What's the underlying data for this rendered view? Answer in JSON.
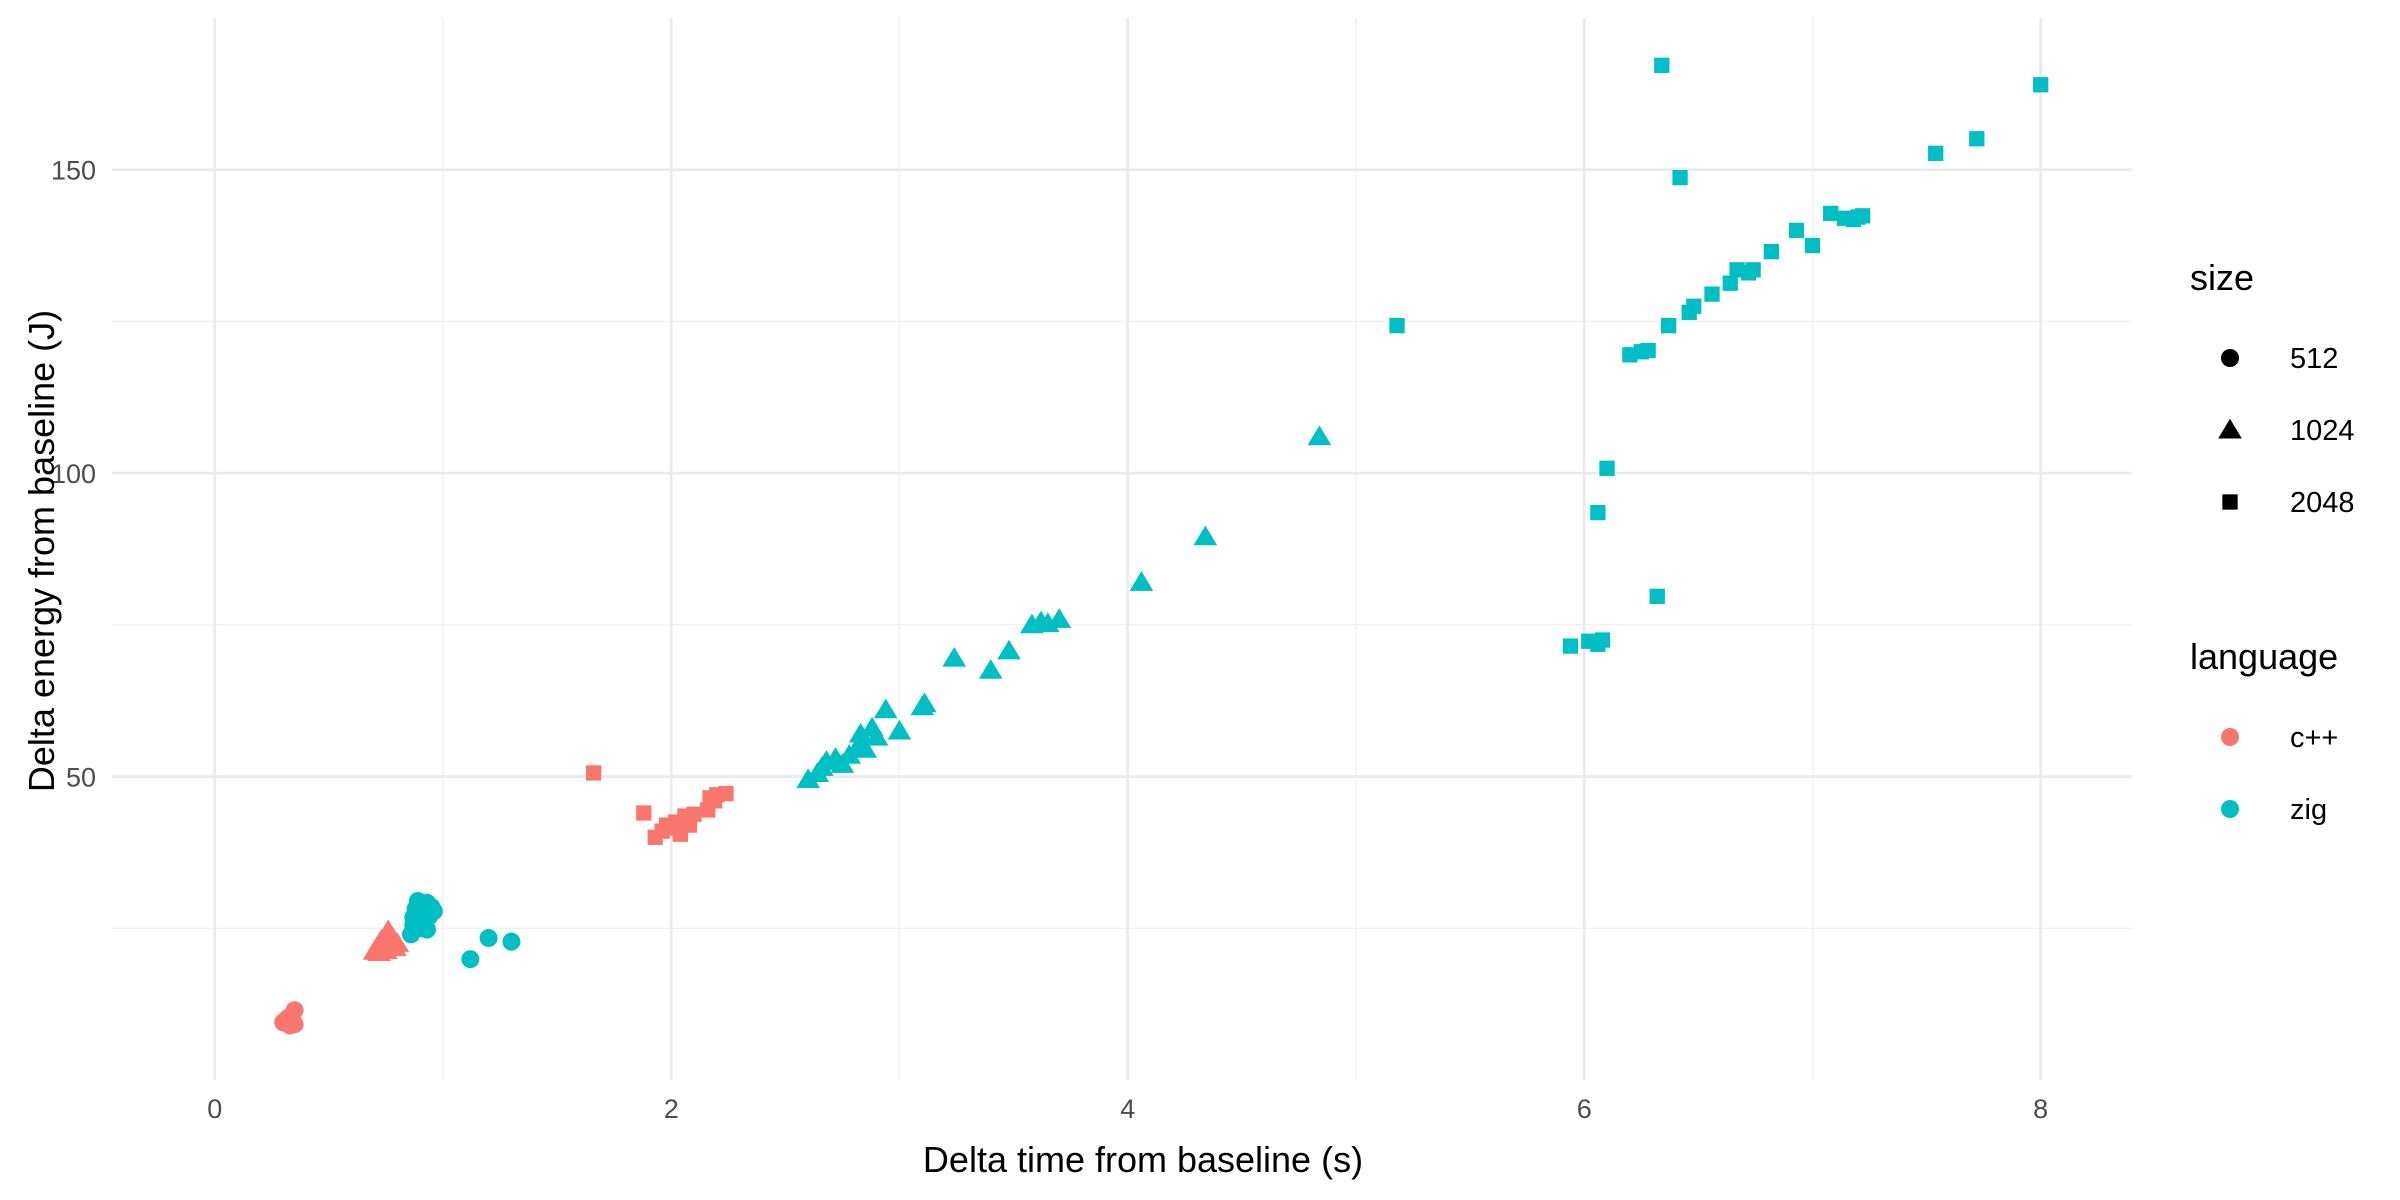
{
  "chart_data": {
    "type": "scatter",
    "title": "",
    "xlabel": "Delta time from baseline (s)",
    "ylabel": "Delta energy from baseline (J)",
    "xlim": [
      -0.45,
      8.4
    ],
    "ylim": [
      0,
      175
    ],
    "x_ticks": [
      0,
      2,
      4,
      6,
      8
    ],
    "x_tick_labels": [
      "0",
      "2",
      "4",
      "6",
      "8"
    ],
    "y_ticks": [
      50,
      100,
      150
    ],
    "y_tick_labels": [
      "50",
      "100",
      "150"
    ],
    "grid": true,
    "legend_position": "right",
    "legends": {
      "size": {
        "title": "size",
        "items": [
          {
            "label": "512",
            "shape": "circle"
          },
          {
            "label": "1024",
            "shape": "triangle"
          },
          {
            "label": "2048",
            "shape": "square"
          }
        ]
      },
      "language": {
        "title": "language",
        "items": [
          {
            "label": "c++",
            "color": "#F8766D"
          },
          {
            "label": "zig",
            "color": "#00BFC4"
          }
        ]
      }
    },
    "colors": {
      "c++": "#F8766D",
      "zig": "#00BFC4"
    },
    "series": [
      {
        "language": "c++",
        "size": "512",
        "points": [
          [
            0.3,
            9.5
          ],
          [
            0.31,
            9.8
          ],
          [
            0.32,
            10.2
          ],
          [
            0.32,
            9.3
          ],
          [
            0.33,
            10.0
          ],
          [
            0.33,
            9.0
          ],
          [
            0.34,
            10.8
          ],
          [
            0.34,
            9.6
          ],
          [
            0.35,
            11.5
          ],
          [
            0.35,
            9.2
          ]
        ]
      },
      {
        "language": "c++",
        "size": "1024",
        "points": [
          [
            0.7,
            21.2
          ],
          [
            0.71,
            21.8
          ],
          [
            0.72,
            22.3
          ],
          [
            0.72,
            21.0
          ],
          [
            0.73,
            23.0
          ],
          [
            0.74,
            21.6
          ],
          [
            0.74,
            22.8
          ],
          [
            0.75,
            23.8
          ],
          [
            0.75,
            21.3
          ],
          [
            0.76,
            24.6
          ],
          [
            0.77,
            22.2
          ],
          [
            0.78,
            23.4
          ],
          [
            0.79,
            21.8
          ],
          [
            0.8,
            22.5
          ]
        ]
      },
      {
        "language": "c++",
        "size": "2048",
        "points": [
          [
            1.66,
            50.6
          ],
          [
            1.88,
            44.0
          ],
          [
            1.93,
            40.0
          ],
          [
            1.96,
            41.0
          ],
          [
            1.98,
            42.0
          ],
          [
            2.0,
            41.5
          ],
          [
            2.02,
            42.5
          ],
          [
            2.04,
            40.5
          ],
          [
            2.06,
            43.5
          ],
          [
            2.08,
            42.0
          ],
          [
            2.1,
            43.8
          ],
          [
            2.16,
            44.5
          ],
          [
            2.17,
            46.5
          ],
          [
            2.19,
            46.0
          ],
          [
            2.2,
            47.0
          ],
          [
            2.24,
            47.2
          ]
        ]
      },
      {
        "language": "zig",
        "size": "512",
        "points": [
          [
            0.86,
            24.0
          ],
          [
            0.87,
            25.5
          ],
          [
            0.87,
            26.8
          ],
          [
            0.88,
            27.5
          ],
          [
            0.88,
            28.2
          ],
          [
            0.89,
            29.5
          ],
          [
            0.9,
            26.0
          ],
          [
            0.9,
            27.2
          ],
          [
            0.91,
            25.0
          ],
          [
            0.92,
            28.0
          ],
          [
            0.92,
            26.5
          ],
          [
            0.93,
            29.2
          ],
          [
            0.93,
            24.8
          ],
          [
            0.94,
            27.0
          ],
          [
            0.95,
            28.5
          ],
          [
            0.96,
            27.8
          ],
          [
            1.12,
            19.9
          ],
          [
            1.2,
            23.4
          ],
          [
            1.3,
            22.8
          ]
        ]
      },
      {
        "language": "zig",
        "size": "1024",
        "points": [
          [
            2.6,
            49.5
          ],
          [
            2.64,
            50.5
          ],
          [
            2.66,
            51.5
          ],
          [
            2.68,
            52.5
          ],
          [
            2.72,
            53.0
          ],
          [
            2.75,
            52.0
          ],
          [
            2.78,
            53.5
          ],
          [
            2.82,
            55.0
          ],
          [
            2.83,
            57.0
          ],
          [
            2.85,
            54.5
          ],
          [
            2.88,
            58.0
          ],
          [
            2.9,
            56.5
          ],
          [
            2.94,
            61.0
          ],
          [
            3.0,
            57.5
          ],
          [
            3.1,
            61.5
          ],
          [
            3.11,
            62.0
          ],
          [
            3.24,
            69.5
          ],
          [
            3.4,
            67.5
          ],
          [
            3.48,
            70.7
          ],
          [
            3.58,
            75.0
          ],
          [
            3.62,
            75.5
          ],
          [
            3.65,
            75.2
          ],
          [
            3.7,
            75.9
          ],
          [
            4.06,
            82.0
          ],
          [
            4.34,
            89.5
          ],
          [
            4.84,
            106.0
          ]
        ]
      },
      {
        "language": "zig",
        "size": "2048",
        "points": [
          [
            5.18,
            124.3
          ],
          [
            5.94,
            71.5
          ],
          [
            6.02,
            72.3
          ],
          [
            6.06,
            71.8
          ],
          [
            6.08,
            72.5
          ],
          [
            6.06,
            93.5
          ],
          [
            6.1,
            100.8
          ],
          [
            6.32,
            79.7
          ],
          [
            6.34,
            167.2
          ],
          [
            6.42,
            148.7
          ],
          [
            6.2,
            119.5
          ],
          [
            6.25,
            120.0
          ],
          [
            6.28,
            120.2
          ],
          [
            6.37,
            124.3
          ],
          [
            6.46,
            126.5
          ],
          [
            6.48,
            127.5
          ],
          [
            6.56,
            129.5
          ],
          [
            6.64,
            131.3
          ],
          [
            6.67,
            133.5
          ],
          [
            6.72,
            133.0
          ],
          [
            6.74,
            133.5
          ],
          [
            6.82,
            136.5
          ],
          [
            6.93,
            140.0
          ],
          [
            7.0,
            137.5
          ],
          [
            7.08,
            142.8
          ],
          [
            7.14,
            142.0
          ],
          [
            7.18,
            141.8
          ],
          [
            7.2,
            142.2
          ],
          [
            7.22,
            142.4
          ],
          [
            7.54,
            152.7
          ],
          [
            7.72,
            155.1
          ],
          [
            8.0,
            164.0
          ]
        ]
      }
    ]
  }
}
